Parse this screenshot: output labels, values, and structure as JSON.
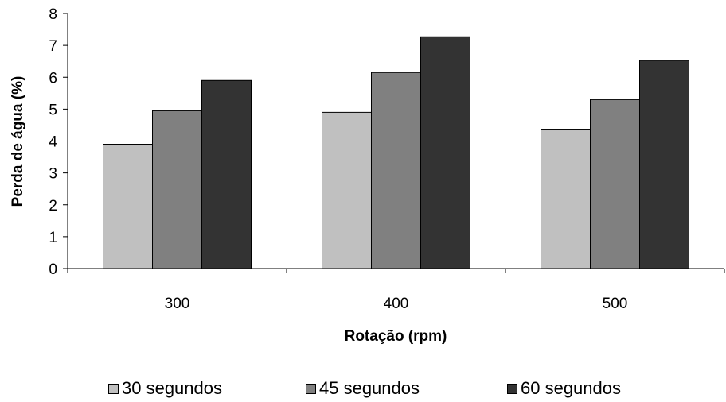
{
  "chart_data": {
    "type": "bar",
    "xlabel": "Rotação (rpm)",
    "ylabel": "Perda de água (%)",
    "categories": [
      "300",
      "400",
      "500"
    ],
    "ylim": [
      0,
      8
    ],
    "yticks": [
      "0",
      "1",
      "2",
      "3",
      "4",
      "5",
      "6",
      "7",
      "8"
    ],
    "grid": false,
    "legend_position": "bottom",
    "series": [
      {
        "name": "30 segundos",
        "color": "#c0c0c0",
        "values": [
          3.9,
          4.9,
          4.35
        ]
      },
      {
        "name": "45 segundos",
        "color": "#808080",
        "values": [
          4.95,
          6.15,
          5.3
        ]
      },
      {
        "name": "60 segundos",
        "color": "#333333",
        "values": [
          5.9,
          7.27,
          6.53
        ]
      }
    ]
  }
}
